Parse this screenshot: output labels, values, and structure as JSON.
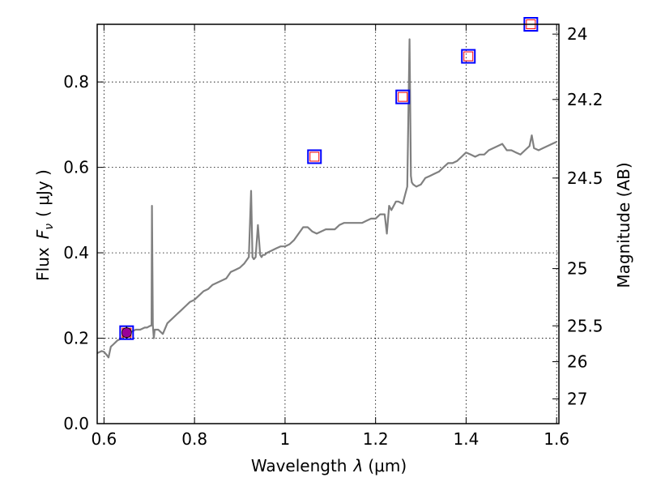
{
  "chart_data": {
    "type": "line",
    "xlabel_text": "Wavelength",
    "xlabel_symbol": "λ",
    "xlabel_unit": "(μm)",
    "ylabel_text": "Flux",
    "ylabel_symbol": "F",
    "ylabel_subscript": "ν",
    "ylabel_unit": "( μJy )",
    "y2label": "Magnitude (AB)",
    "xlim": [
      0.585,
      1.605
    ],
    "ylim": [
      0.0,
      0.935
    ],
    "grid": true,
    "x_ticks": [
      0.6,
      0.8,
      1.0,
      1.2,
      1.4,
      1.6
    ],
    "x_tick_labels": [
      "0.6",
      "0.8",
      "1",
      "1.2",
      "1.4",
      "1.6"
    ],
    "y_ticks": [
      0.0,
      0.2,
      0.4,
      0.6,
      0.8
    ],
    "y_tick_labels": [
      "0.0",
      "0.2",
      "0.4",
      "0.6",
      "0.8"
    ],
    "y2_ticks": [
      {
        "label": "24",
        "flux": 0.912
      },
      {
        "label": "24.2",
        "flux": 0.759
      },
      {
        "label": "24.5",
        "flux": 0.575
      },
      {
        "label": "25",
        "flux": 0.363
      },
      {
        "label": "25.5",
        "flux": 0.229
      },
      {
        "label": "26",
        "flux": 0.145
      },
      {
        "label": "27",
        "flux": 0.058
      }
    ],
    "spectrum": {
      "color": "#808080",
      "x": [
        0.585,
        0.595,
        0.6,
        0.605,
        0.61,
        0.615,
        0.62,
        0.625,
        0.63,
        0.64,
        0.65,
        0.66,
        0.67,
        0.68,
        0.69,
        0.695,
        0.7,
        0.705,
        0.706,
        0.708,
        0.71,
        0.712,
        0.72,
        0.73,
        0.74,
        0.75,
        0.76,
        0.77,
        0.78,
        0.79,
        0.8,
        0.81,
        0.82,
        0.83,
        0.84,
        0.85,
        0.86,
        0.87,
        0.88,
        0.89,
        0.9,
        0.91,
        0.92,
        0.925,
        0.928,
        0.931,
        0.935,
        0.94,
        0.945,
        0.948,
        0.951,
        0.955,
        0.96,
        0.97,
        0.98,
        0.99,
        1.0,
        1.01,
        1.02,
        1.03,
        1.04,
        1.05,
        1.06,
        1.07,
        1.08,
        1.09,
        1.1,
        1.11,
        1.12,
        1.13,
        1.14,
        1.15,
        1.16,
        1.17,
        1.18,
        1.19,
        1.2,
        1.21,
        1.22,
        1.225,
        1.23,
        1.235,
        1.24,
        1.245,
        1.25,
        1.26,
        1.265,
        1.27,
        1.275,
        1.278,
        1.28,
        1.283,
        1.29,
        1.3,
        1.31,
        1.32,
        1.33,
        1.34,
        1.35,
        1.36,
        1.37,
        1.38,
        1.39,
        1.4,
        1.41,
        1.42,
        1.43,
        1.44,
        1.45,
        1.46,
        1.47,
        1.48,
        1.49,
        1.5,
        1.51,
        1.52,
        1.53,
        1.54,
        1.545,
        1.55,
        1.56,
        1.57,
        1.58,
        1.59,
        1.6
      ],
      "y": [
        0.165,
        0.17,
        0.168,
        0.162,
        0.155,
        0.18,
        0.185,
        0.19,
        0.195,
        0.2,
        0.21,
        0.215,
        0.22,
        0.22,
        0.225,
        0.225,
        0.228,
        0.23,
        0.51,
        0.23,
        0.2,
        0.22,
        0.22,
        0.21,
        0.235,
        0.245,
        0.255,
        0.265,
        0.275,
        0.285,
        0.29,
        0.3,
        0.31,
        0.315,
        0.325,
        0.33,
        0.335,
        0.34,
        0.355,
        0.36,
        0.365,
        0.375,
        0.39,
        0.545,
        0.39,
        0.385,
        0.39,
        0.465,
        0.395,
        0.39,
        0.395,
        0.395,
        0.4,
        0.405,
        0.41,
        0.415,
        0.415,
        0.42,
        0.43,
        0.445,
        0.46,
        0.46,
        0.45,
        0.445,
        0.45,
        0.455,
        0.455,
        0.455,
        0.465,
        0.47,
        0.47,
        0.47,
        0.47,
        0.47,
        0.475,
        0.48,
        0.48,
        0.49,
        0.49,
        0.445,
        0.51,
        0.5,
        0.51,
        0.52,
        0.52,
        0.515,
        0.535,
        0.555,
        0.9,
        0.58,
        0.565,
        0.56,
        0.555,
        0.56,
        0.575,
        0.58,
        0.585,
        0.59,
        0.6,
        0.61,
        0.61,
        0.615,
        0.625,
        0.635,
        0.63,
        0.625,
        0.63,
        0.63,
        0.64,
        0.645,
        0.65,
        0.655,
        0.64,
        0.64,
        0.635,
        0.63,
        0.64,
        0.65,
        0.675,
        0.645,
        0.64,
        0.645,
        0.65,
        0.655,
        0.66
      ]
    },
    "photometry": [
      {
        "x": 0.65,
        "y": 0.213
      },
      {
        "x": 1.065,
        "y": 0.625
      },
      {
        "x": 1.26,
        "y": 0.765
      },
      {
        "x": 1.405,
        "y": 0.86
      },
      {
        "x": 1.543,
        "y": 0.935
      }
    ],
    "measured_point": {
      "x": 0.65,
      "y": 0.213,
      "yerr": 0.014,
      "color": "#990099"
    },
    "marker_outer_color": "#0000ff",
    "marker_inner_color": "#ff0000"
  }
}
